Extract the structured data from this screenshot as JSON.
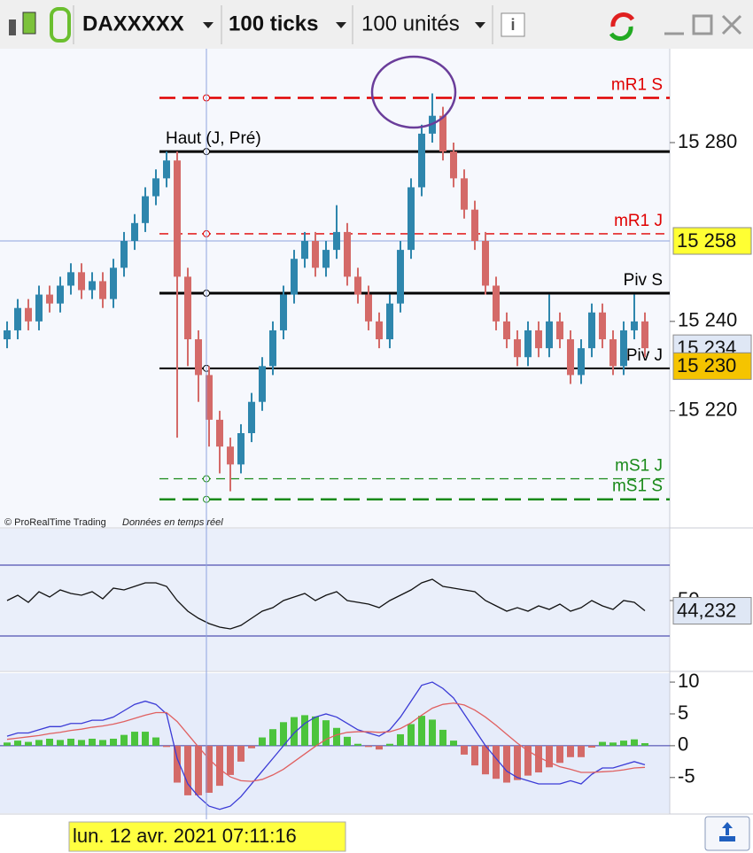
{
  "toolbar": {
    "symbol": "DAXXXXX",
    "interval": "100 ticks",
    "units": "100 unités",
    "info": "i"
  },
  "footer": {
    "copyright": "© ProRealTime Trading",
    "feed": "Données en temps réel"
  },
  "crosshair_date": "lun. 12 avr. 2021 07:11:16",
  "chart_data": [
    {
      "type": "candlestick",
      "open": [
        15236,
        15238,
        15243,
        15240,
        15246,
        15244,
        15248,
        15251,
        15247,
        15249,
        15245,
        15252,
        15258,
        15262,
        15268,
        15272,
        15276,
        15250,
        15236,
        15228,
        15218,
        15212,
        15208,
        15215,
        15222,
        15230,
        15238,
        15246,
        15254,
        15258,
        15252,
        15256,
        15260,
        15250,
        15246,
        15240,
        15236,
        15244,
        15256,
        15270,
        15282,
        15286,
        15278,
        15272,
        15265,
        15258,
        15248,
        15240,
        15236,
        15232,
        15238,
        15234,
        15240,
        15236,
        15228,
        15234,
        15242,
        15236,
        15230,
        15238,
        15240
      ],
      "high": [
        15240,
        15245,
        15245,
        15248,
        15248,
        15250,
        15253,
        15253,
        15251,
        15251,
        15254,
        15260,
        15264,
        15270,
        15274,
        15278,
        15278,
        15252,
        15238,
        15230,
        15220,
        15214,
        15217,
        15224,
        15232,
        15240,
        15248,
        15256,
        15260,
        15260,
        15258,
        15266,
        15262,
        15252,
        15248,
        15242,
        15246,
        15258,
        15272,
        15284,
        15291,
        15288,
        15280,
        15274,
        15267,
        15260,
        15250,
        15242,
        15238,
        15240,
        15240,
        15246,
        15242,
        15238,
        15236,
        15244,
        15244,
        15238,
        15240,
        15246,
        15242
      ],
      "low": [
        15234,
        15236,
        15238,
        15238,
        15242,
        15242,
        15246,
        15245,
        15245,
        15243,
        15243,
        15250,
        15256,
        15260,
        15266,
        15270,
        15214,
        15230,
        15222,
        15212,
        15206,
        15202,
        15206,
        15213,
        15220,
        15228,
        15236,
        15244,
        15252,
        15250,
        15250,
        15254,
        15248,
        15244,
        15238,
        15234,
        15234,
        15242,
        15254,
        15268,
        15280,
        15276,
        15270,
        15263,
        15256,
        15246,
        15238,
        15234,
        15230,
        15230,
        15232,
        15232,
        15234,
        15226,
        15226,
        15232,
        15234,
        15228,
        15228,
        15236,
        15232
      ],
      "close": [
        15238,
        15243,
        15240,
        15246,
        15244,
        15248,
        15251,
        15247,
        15249,
        15245,
        15252,
        15258,
        15262,
        15268,
        15272,
        15276,
        15250,
        15236,
        15228,
        15218,
        15212,
        15208,
        15215,
        15222,
        15230,
        15238,
        15246,
        15254,
        15258,
        15252,
        15256,
        15260,
        15250,
        15246,
        15240,
        15236,
        15244,
        15256,
        15270,
        15282,
        15286,
        15278,
        15272,
        15265,
        15258,
        15248,
        15240,
        15236,
        15232,
        15238,
        15234,
        15240,
        15236,
        15228,
        15234,
        15242,
        15236,
        15230,
        15238,
        15240,
        15234
      ],
      "up_color": "#2e86ad",
      "down_color": "#d46a68",
      "ylim": [
        15194,
        15301
      ],
      "yticks": [
        {
          "value": 15220,
          "label": "15 220"
        },
        {
          "value": 15240,
          "label": "15 240"
        },
        {
          "value": 15280,
          "label": "15 280"
        }
      ],
      "levels": [
        {
          "name": "mR1 S",
          "value": 15290,
          "color": "#e00000",
          "style": "dashed-bold"
        },
        {
          "name": "Haut (J, Pré)",
          "value": 15278,
          "color": "#000000",
          "style": "bold"
        },
        {
          "name": "mR1 J",
          "value": 15259.6,
          "color": "#e00000",
          "style": "dashed"
        },
        {
          "name": "Piv S",
          "value": 15246.3,
          "color": "#000000",
          "style": "bold"
        },
        {
          "name": "Piv J",
          "value": 15229.5,
          "color": "#000000",
          "style": "solid"
        },
        {
          "name": "mS1 J",
          "value": 15204.8,
          "color": "#1a8a1a",
          "style": "dashed"
        },
        {
          "name": "mS1 S",
          "value": 15200.2,
          "color": "#1a8a1a",
          "style": "dashed-bold"
        }
      ],
      "badges": [
        {
          "value": 15258,
          "label": "15 258",
          "color": "#ffff33"
        },
        {
          "value": 15234,
          "label": "15 234",
          "color": "#dfe7f5"
        },
        {
          "value": 15230,
          "label": "15 230",
          "color": "#f5c400"
        }
      ]
    },
    {
      "type": "line",
      "series": [
        {
          "color": "#111111",
          "values": [
            50,
            53,
            49,
            55,
            52,
            56,
            54,
            53,
            55,
            51,
            57,
            56,
            58,
            60,
            60,
            58,
            50,
            44,
            40,
            37,
            35,
            34,
            36,
            40,
            44,
            46,
            50,
            52,
            54,
            50,
            53,
            55,
            50,
            49,
            48,
            46,
            50,
            53,
            56,
            60,
            62,
            58,
            57,
            56,
            55,
            50,
            47,
            44,
            46,
            44,
            47,
            45,
            48,
            44,
            46,
            50,
            47,
            45,
            50,
            49,
            44.232
          ]
        }
      ],
      "ylim": [
        10.5,
        90.5
      ],
      "yticks": [
        50
      ],
      "bands": [
        30,
        70
      ],
      "band_color": "#2a2aa0",
      "badges": [
        {
          "value": 44.232,
          "label": "44,232",
          "color": "#dfe7f5"
        }
      ]
    },
    {
      "type": "macd",
      "series": [
        {
          "color": "#3b3bd6",
          "values": [
            1.5,
            2,
            2,
            2.5,
            3,
            3,
            3.5,
            3.5,
            4,
            4,
            4.5,
            5.5,
            6.5,
            7,
            6.5,
            5,
            -2,
            -6,
            -8,
            -9.5,
            -10,
            -9.5,
            -8,
            -6,
            -4,
            -2,
            0,
            2,
            3.5,
            4.5,
            5,
            4.5,
            3.5,
            2.5,
            2,
            1.5,
            2.5,
            4.5,
            7,
            9.5,
            10,
            9,
            7.5,
            5,
            2.5,
            0,
            -2,
            -4,
            -5,
            -5.5,
            -6,
            -6,
            -6,
            -5.5,
            -6,
            -4.5,
            -3.5,
            -3.5,
            -3,
            -2.5,
            -3
          ]
        },
        {
          "color": "#e06060",
          "values": [
            1,
            1.2,
            1.4,
            1.6,
            1.9,
            2.1,
            2.4,
            2.6,
            2.9,
            3.1,
            3.4,
            3.8,
            4.3,
            4.8,
            5.2,
            5.2,
            3.8,
            1.8,
            -0.2,
            -2.1,
            -3.7,
            -4.9,
            -5.5,
            -5.6,
            -5.3,
            -4.6,
            -3.7,
            -2.5,
            -1.3,
            -0.1,
            1,
            1.7,
            2.1,
            2.2,
            2.2,
            2.1,
            2.2,
            2.7,
            3.6,
            4.8,
            5.9,
            6.5,
            6.7,
            6.4,
            5.6,
            4.5,
            3.2,
            1.8,
            0.4,
            -0.8,
            -1.8,
            -2.6,
            -3.3,
            -3.7,
            -4.2,
            -4.2,
            -4.1,
            -4,
            -3.8,
            -3.5,
            -3.4
          ]
        }
      ],
      "histogram": {
        "up_color": "#4cc43c",
        "down_color": "#d46a68",
        "values": [
          0.5,
          0.8,
          0.6,
          0.9,
          1.1,
          0.9,
          1.1,
          0.9,
          1.1,
          0.9,
          1.1,
          1.7,
          2.2,
          2.2,
          1.3,
          -0.2,
          -5.8,
          -7.8,
          -7.8,
          -7.4,
          -6.3,
          -4.6,
          -2.5,
          -0.4,
          1.3,
          2.6,
          3.7,
          4.5,
          4.8,
          4.6,
          4,
          2.8,
          1.4,
          0.3,
          -0.2,
          -0.6,
          0.3,
          1.8,
          3.4,
          4.7,
          4.1,
          2.5,
          0.8,
          -1.4,
          -3.1,
          -4.5,
          -5.2,
          -5.8,
          -5.4,
          -4.7,
          -4.2,
          -3.4,
          -2.7,
          -1.8,
          -1.8,
          -0.3,
          0.6,
          0.5,
          0.8,
          1,
          0.4
        ]
      },
      "ylim": [
        -10.6,
        11.4
      ],
      "yticks": [
        10,
        5,
        0,
        -5
      ]
    }
  ]
}
